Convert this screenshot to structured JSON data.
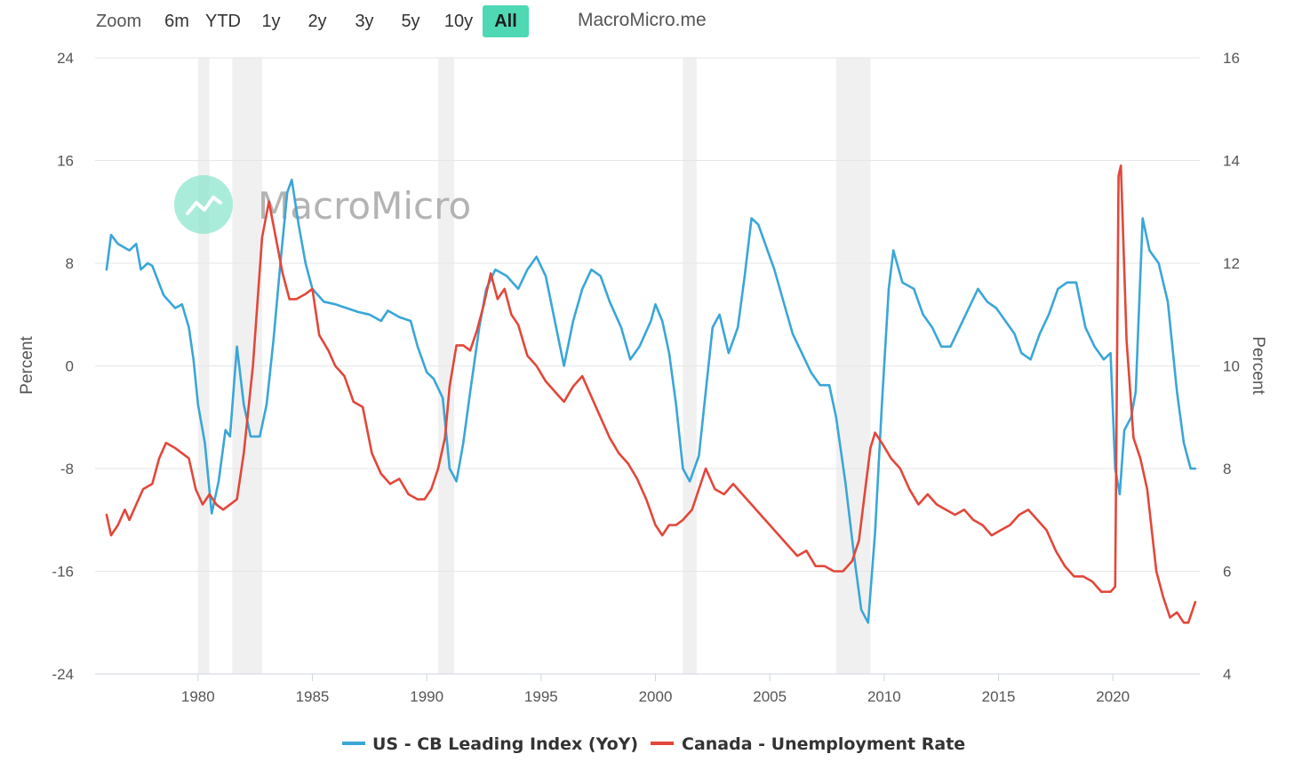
{
  "toolbar": {
    "zoom_label": "Zoom",
    "buttons": [
      "6m",
      "YTD",
      "1y",
      "2y",
      "3y",
      "5y",
      "10y",
      "All"
    ],
    "active": "All",
    "brand": "MacroMicro.me"
  },
  "watermark": {
    "text": "MacroMicro"
  },
  "colors": {
    "us": "#3aa6d8",
    "canada": "#e2473a",
    "recession": "#f0f0f0",
    "accent": "#4fd8b4"
  },
  "chart_data": {
    "type": "line",
    "x_range": [
      1975.5,
      2023.8
    ],
    "x_ticks": [
      1980,
      1985,
      1990,
      1995,
      2000,
      2005,
      2010,
      2015,
      2020
    ],
    "left_axis": {
      "title": "Percent",
      "range": [
        -24,
        24
      ],
      "ticks": [
        24,
        16,
        8,
        0,
        -8,
        -16,
        -24
      ]
    },
    "right_axis": {
      "title": "Percent",
      "range": [
        4,
        16
      ],
      "ticks": [
        16,
        14,
        12,
        10,
        8,
        6,
        4
      ]
    },
    "recessions": [
      [
        1980.0,
        1980.5
      ],
      [
        1981.5,
        1982.8
      ],
      [
        1990.5,
        1991.2
      ],
      [
        2001.2,
        2001.8
      ],
      [
        2007.9,
        2009.4
      ]
    ],
    "series": [
      {
        "name": "US - CB Leading Index (YoY)",
        "axis": "left",
        "points": [
          [
            1976.0,
            7.5
          ],
          [
            1976.2,
            10.2
          ],
          [
            1976.5,
            9.5
          ],
          [
            1977.0,
            9.0
          ],
          [
            1977.3,
            9.5
          ],
          [
            1977.5,
            7.5
          ],
          [
            1977.8,
            8.0
          ],
          [
            1978.0,
            7.8
          ],
          [
            1978.5,
            5.5
          ],
          [
            1979.0,
            4.5
          ],
          [
            1979.3,
            4.8
          ],
          [
            1979.6,
            3.0
          ],
          [
            1979.8,
            0.5
          ],
          [
            1980.0,
            -3.0
          ],
          [
            1980.3,
            -6.0
          ],
          [
            1980.6,
            -11.5
          ],
          [
            1980.9,
            -9.0
          ],
          [
            1981.2,
            -5.0
          ],
          [
            1981.4,
            -5.5
          ],
          [
            1981.7,
            1.5
          ],
          [
            1982.0,
            -3.0
          ],
          [
            1982.3,
            -5.5
          ],
          [
            1982.7,
            -5.5
          ],
          [
            1983.0,
            -3.0
          ],
          [
            1983.3,
            2.0
          ],
          [
            1983.6,
            8.0
          ],
          [
            1983.9,
            13.5
          ],
          [
            1984.1,
            14.5
          ],
          [
            1984.4,
            11.0
          ],
          [
            1984.7,
            8.0
          ],
          [
            1985.0,
            6.0
          ],
          [
            1985.5,
            5.0
          ],
          [
            1986.0,
            4.8
          ],
          [
            1986.5,
            4.5
          ],
          [
            1987.0,
            4.2
          ],
          [
            1987.5,
            4.0
          ],
          [
            1988.0,
            3.5
          ],
          [
            1988.3,
            4.3
          ],
          [
            1988.8,
            3.8
          ],
          [
            1989.3,
            3.5
          ],
          [
            1989.6,
            1.5
          ],
          [
            1990.0,
            -0.5
          ],
          [
            1990.3,
            -1.0
          ],
          [
            1990.7,
            -2.5
          ],
          [
            1991.0,
            -8.0
          ],
          [
            1991.3,
            -9.0
          ],
          [
            1991.6,
            -6.0
          ],
          [
            1991.9,
            -2.0
          ],
          [
            1992.3,
            3.0
          ],
          [
            1992.6,
            6.0
          ],
          [
            1993.0,
            7.5
          ],
          [
            1993.5,
            7.0
          ],
          [
            1994.0,
            6.0
          ],
          [
            1994.4,
            7.5
          ],
          [
            1994.8,
            8.5
          ],
          [
            1995.2,
            7.0
          ],
          [
            1995.6,
            3.5
          ],
          [
            1996.0,
            0.0
          ],
          [
            1996.4,
            3.5
          ],
          [
            1996.8,
            6.0
          ],
          [
            1997.2,
            7.5
          ],
          [
            1997.6,
            7.0
          ],
          [
            1998.0,
            5.0
          ],
          [
            1998.5,
            3.0
          ],
          [
            1998.9,
            0.5
          ],
          [
            1999.3,
            1.5
          ],
          [
            1999.8,
            3.5
          ],
          [
            2000.0,
            4.8
          ],
          [
            2000.3,
            3.5
          ],
          [
            2000.6,
            1.0
          ],
          [
            2000.9,
            -3.0
          ],
          [
            2001.2,
            -8.0
          ],
          [
            2001.5,
            -9.0
          ],
          [
            2001.9,
            -7.0
          ],
          [
            2002.2,
            -2.0
          ],
          [
            2002.5,
            3.0
          ],
          [
            2002.8,
            4.0
          ],
          [
            2003.2,
            1.0
          ],
          [
            2003.6,
            3.0
          ],
          [
            2003.9,
            7.0
          ],
          [
            2004.2,
            11.5
          ],
          [
            2004.5,
            11.0
          ],
          [
            2004.8,
            9.5
          ],
          [
            2005.2,
            7.5
          ],
          [
            2005.6,
            5.0
          ],
          [
            2006.0,
            2.5
          ],
          [
            2006.4,
            1.0
          ],
          [
            2006.8,
            -0.5
          ],
          [
            2007.2,
            -1.5
          ],
          [
            2007.6,
            -1.5
          ],
          [
            2007.9,
            -4.0
          ],
          [
            2008.3,
            -9.0
          ],
          [
            2008.7,
            -15.0
          ],
          [
            2009.0,
            -19.0
          ],
          [
            2009.3,
            -20.0
          ],
          [
            2009.6,
            -13.0
          ],
          [
            2009.9,
            -3.0
          ],
          [
            2010.2,
            6.0
          ],
          [
            2010.4,
            9.0
          ],
          [
            2010.8,
            6.5
          ],
          [
            2011.3,
            6.0
          ],
          [
            2011.7,
            4.0
          ],
          [
            2012.1,
            3.0
          ],
          [
            2012.5,
            1.5
          ],
          [
            2012.9,
            1.5
          ],
          [
            2013.3,
            3.0
          ],
          [
            2013.7,
            4.5
          ],
          [
            2014.1,
            6.0
          ],
          [
            2014.5,
            5.0
          ],
          [
            2014.9,
            4.5
          ],
          [
            2015.3,
            3.5
          ],
          [
            2015.7,
            2.5
          ],
          [
            2016.0,
            1.0
          ],
          [
            2016.4,
            0.5
          ],
          [
            2016.8,
            2.5
          ],
          [
            2017.2,
            4.0
          ],
          [
            2017.6,
            6.0
          ],
          [
            2018.0,
            6.5
          ],
          [
            2018.4,
            6.5
          ],
          [
            2018.8,
            3.0
          ],
          [
            2019.2,
            1.5
          ],
          [
            2019.6,
            0.5
          ],
          [
            2019.9,
            1.0
          ],
          [
            2020.1,
            -8.0
          ],
          [
            2020.3,
            -10.0
          ],
          [
            2020.5,
            -5.0
          ],
          [
            2020.8,
            -4.0
          ],
          [
            2021.0,
            -2.0
          ],
          [
            2021.3,
            11.5
          ],
          [
            2021.6,
            9.0
          ],
          [
            2022.0,
            8.0
          ],
          [
            2022.4,
            5.0
          ],
          [
            2022.8,
            -2.0
          ],
          [
            2023.1,
            -6.0
          ],
          [
            2023.4,
            -8.0
          ],
          [
            2023.6,
            -8.0
          ]
        ]
      },
      {
        "name": "Canada - Unemployment Rate",
        "axis": "right",
        "points": [
          [
            1976.0,
            7.1
          ],
          [
            1976.2,
            6.7
          ],
          [
            1976.5,
            6.9
          ],
          [
            1976.8,
            7.2
          ],
          [
            1977.0,
            7.0
          ],
          [
            1977.3,
            7.3
          ],
          [
            1977.6,
            7.6
          ],
          [
            1978.0,
            7.7
          ],
          [
            1978.3,
            8.2
          ],
          [
            1978.6,
            8.5
          ],
          [
            1979.0,
            8.4
          ],
          [
            1979.3,
            8.3
          ],
          [
            1979.6,
            8.2
          ],
          [
            1979.9,
            7.6
          ],
          [
            1980.2,
            7.3
          ],
          [
            1980.5,
            7.5
          ],
          [
            1980.8,
            7.3
          ],
          [
            1981.1,
            7.2
          ],
          [
            1981.4,
            7.3
          ],
          [
            1981.7,
            7.4
          ],
          [
            1982.0,
            8.3
          ],
          [
            1982.4,
            10.0
          ],
          [
            1982.8,
            12.5
          ],
          [
            1983.1,
            13.2
          ],
          [
            1983.4,
            12.5
          ],
          [
            1983.7,
            11.8
          ],
          [
            1984.0,
            11.3
          ],
          [
            1984.3,
            11.3
          ],
          [
            1984.7,
            11.4
          ],
          [
            1985.0,
            11.5
          ],
          [
            1985.3,
            10.6
          ],
          [
            1985.7,
            10.3
          ],
          [
            1986.0,
            10.0
          ],
          [
            1986.4,
            9.8
          ],
          [
            1986.8,
            9.3
          ],
          [
            1987.2,
            9.2
          ],
          [
            1987.6,
            8.3
          ],
          [
            1988.0,
            7.9
          ],
          [
            1988.4,
            7.7
          ],
          [
            1988.8,
            7.8
          ],
          [
            1989.2,
            7.5
          ],
          [
            1989.6,
            7.4
          ],
          [
            1989.9,
            7.4
          ],
          [
            1990.2,
            7.6
          ],
          [
            1990.5,
            8.0
          ],
          [
            1990.8,
            8.6
          ],
          [
            1991.0,
            9.6
          ],
          [
            1991.3,
            10.4
          ],
          [
            1991.6,
            10.4
          ],
          [
            1991.9,
            10.3
          ],
          [
            1992.2,
            10.7
          ],
          [
            1992.5,
            11.2
          ],
          [
            1992.8,
            11.8
          ],
          [
            1993.1,
            11.3
          ],
          [
            1993.4,
            11.5
          ],
          [
            1993.7,
            11.0
          ],
          [
            1994.0,
            10.8
          ],
          [
            1994.4,
            10.2
          ],
          [
            1994.8,
            10.0
          ],
          [
            1995.2,
            9.7
          ],
          [
            1995.6,
            9.5
          ],
          [
            1996.0,
            9.3
          ],
          [
            1996.4,
            9.6
          ],
          [
            1996.8,
            9.8
          ],
          [
            1997.2,
            9.4
          ],
          [
            1997.6,
            9.0
          ],
          [
            1998.0,
            8.6
          ],
          [
            1998.4,
            8.3
          ],
          [
            1998.8,
            8.1
          ],
          [
            1999.2,
            7.8
          ],
          [
            1999.6,
            7.4
          ],
          [
            2000.0,
            6.9
          ],
          [
            2000.3,
            6.7
          ],
          [
            2000.6,
            6.9
          ],
          [
            2000.9,
            6.9
          ],
          [
            2001.2,
            7.0
          ],
          [
            2001.6,
            7.2
          ],
          [
            2001.9,
            7.6
          ],
          [
            2002.2,
            8.0
          ],
          [
            2002.6,
            7.6
          ],
          [
            2003.0,
            7.5
          ],
          [
            2003.4,
            7.7
          ],
          [
            2003.8,
            7.5
          ],
          [
            2004.2,
            7.3
          ],
          [
            2004.6,
            7.1
          ],
          [
            2005.0,
            6.9
          ],
          [
            2005.4,
            6.7
          ],
          [
            2005.8,
            6.5
          ],
          [
            2006.2,
            6.3
          ],
          [
            2006.6,
            6.4
          ],
          [
            2007.0,
            6.1
          ],
          [
            2007.4,
            6.1
          ],
          [
            2007.8,
            6.0
          ],
          [
            2008.2,
            6.0
          ],
          [
            2008.6,
            6.2
          ],
          [
            2008.9,
            6.6
          ],
          [
            2009.2,
            7.7
          ],
          [
            2009.4,
            8.4
          ],
          [
            2009.6,
            8.7
          ],
          [
            2009.9,
            8.5
          ],
          [
            2010.3,
            8.2
          ],
          [
            2010.7,
            8.0
          ],
          [
            2011.1,
            7.6
          ],
          [
            2011.5,
            7.3
          ],
          [
            2011.9,
            7.5
          ],
          [
            2012.3,
            7.3
          ],
          [
            2012.7,
            7.2
          ],
          [
            2013.1,
            7.1
          ],
          [
            2013.5,
            7.2
          ],
          [
            2013.9,
            7.0
          ],
          [
            2014.3,
            6.9
          ],
          [
            2014.7,
            6.7
          ],
          [
            2015.1,
            6.8
          ],
          [
            2015.5,
            6.9
          ],
          [
            2015.9,
            7.1
          ],
          [
            2016.3,
            7.2
          ],
          [
            2016.7,
            7.0
          ],
          [
            2017.1,
            6.8
          ],
          [
            2017.5,
            6.4
          ],
          [
            2017.9,
            6.1
          ],
          [
            2018.3,
            5.9
          ],
          [
            2018.7,
            5.9
          ],
          [
            2019.1,
            5.8
          ],
          [
            2019.5,
            5.6
          ],
          [
            2019.9,
            5.6
          ],
          [
            2020.1,
            5.7
          ],
          [
            2020.25,
            13.7
          ],
          [
            2020.35,
            13.9
          ],
          [
            2020.6,
            10.5
          ],
          [
            2020.9,
            8.6
          ],
          [
            2021.2,
            8.2
          ],
          [
            2021.5,
            7.6
          ],
          [
            2021.9,
            6.0
          ],
          [
            2022.2,
            5.5
          ],
          [
            2022.5,
            5.1
          ],
          [
            2022.8,
            5.2
          ],
          [
            2023.1,
            5.0
          ],
          [
            2023.3,
            5.0
          ],
          [
            2023.6,
            5.4
          ]
        ]
      }
    ]
  }
}
